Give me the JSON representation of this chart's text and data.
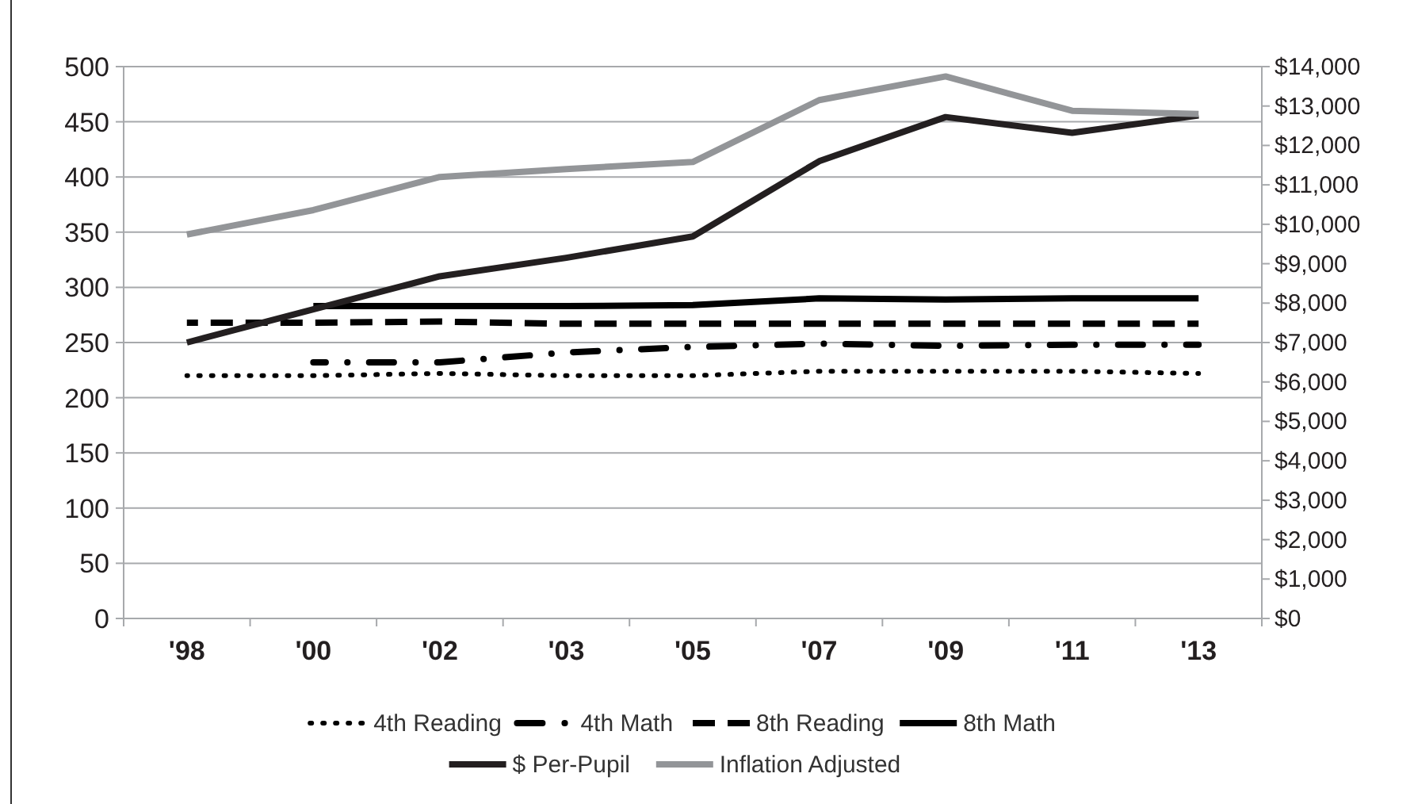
{
  "chart_data": {
    "type": "line",
    "categories": [
      "'98",
      "'00",
      "'02",
      "'03",
      "'05",
      "'07",
      "'09",
      "'11",
      "'13"
    ],
    "series": [
      {
        "name": "4th Reading",
        "color": "#000000",
        "line_style": "dotted",
        "values": [
          220,
          220,
          222,
          220,
          220,
          224,
          224,
          224,
          222
        ]
      },
      {
        "name": "4th Math",
        "color": "#000000",
        "line_style": "dashdot",
        "values": [
          null,
          232,
          232,
          241,
          246,
          249,
          247,
          248,
          248
        ]
      },
      {
        "name": "8th Reading",
        "color": "#000000",
        "line_style": "dashed",
        "values": [
          268,
          268,
          269,
          267,
          267,
          267,
          267,
          267,
          267
        ]
      },
      {
        "name": "8th Math",
        "color": "#000000",
        "line_style": "solid",
        "values": [
          null,
          283,
          283,
          283,
          284,
          290,
          289,
          290,
          290
        ]
      },
      {
        "name": "$ Per-Pupil",
        "color": "#231f20",
        "line_style": "solid",
        "axis": "y2",
        "values": [
          7000,
          7840,
          8680,
          9150,
          9690,
          11600,
          12720,
          12320,
          12760
        ]
      },
      {
        "name": "Inflation Adjusted",
        "color": "#939598",
        "line_style": "solid",
        "axis": "y2",
        "values": [
          9740,
          10360,
          11200,
          11400,
          11580,
          13150,
          13750,
          12880,
          12800
        ]
      }
    ],
    "ylim": [
      0,
      500
    ],
    "yticks": [
      0,
      50,
      100,
      150,
      200,
      250,
      300,
      350,
      400,
      450,
      500
    ],
    "y2lim": [
      0,
      14000
    ],
    "y2ticks": [
      {
        "value": 0,
        "label": "$0"
      },
      {
        "value": 1000,
        "label": "$1,000"
      },
      {
        "value": 2000,
        "label": "$2,000"
      },
      {
        "value": 3000,
        "label": "$3,000"
      },
      {
        "value": 4000,
        "label": "$4,000"
      },
      {
        "value": 5000,
        "label": "$5,000"
      },
      {
        "value": 6000,
        "label": "$6,000"
      },
      {
        "value": 7000,
        "label": "$7,000"
      },
      {
        "value": 8000,
        "label": "$8,000"
      },
      {
        "value": 9000,
        "label": "$9,000"
      },
      {
        "value": 10000,
        "label": "$10,000"
      },
      {
        "value": 11000,
        "label": "$11,000"
      },
      {
        "value": 12000,
        "label": "$12,000"
      },
      {
        "value": 13000,
        "label": "$13,000"
      },
      {
        "value": 14000,
        "label": "$14,000"
      }
    ],
    "grid": "y",
    "legend": "bottom",
    "marker": "none"
  }
}
